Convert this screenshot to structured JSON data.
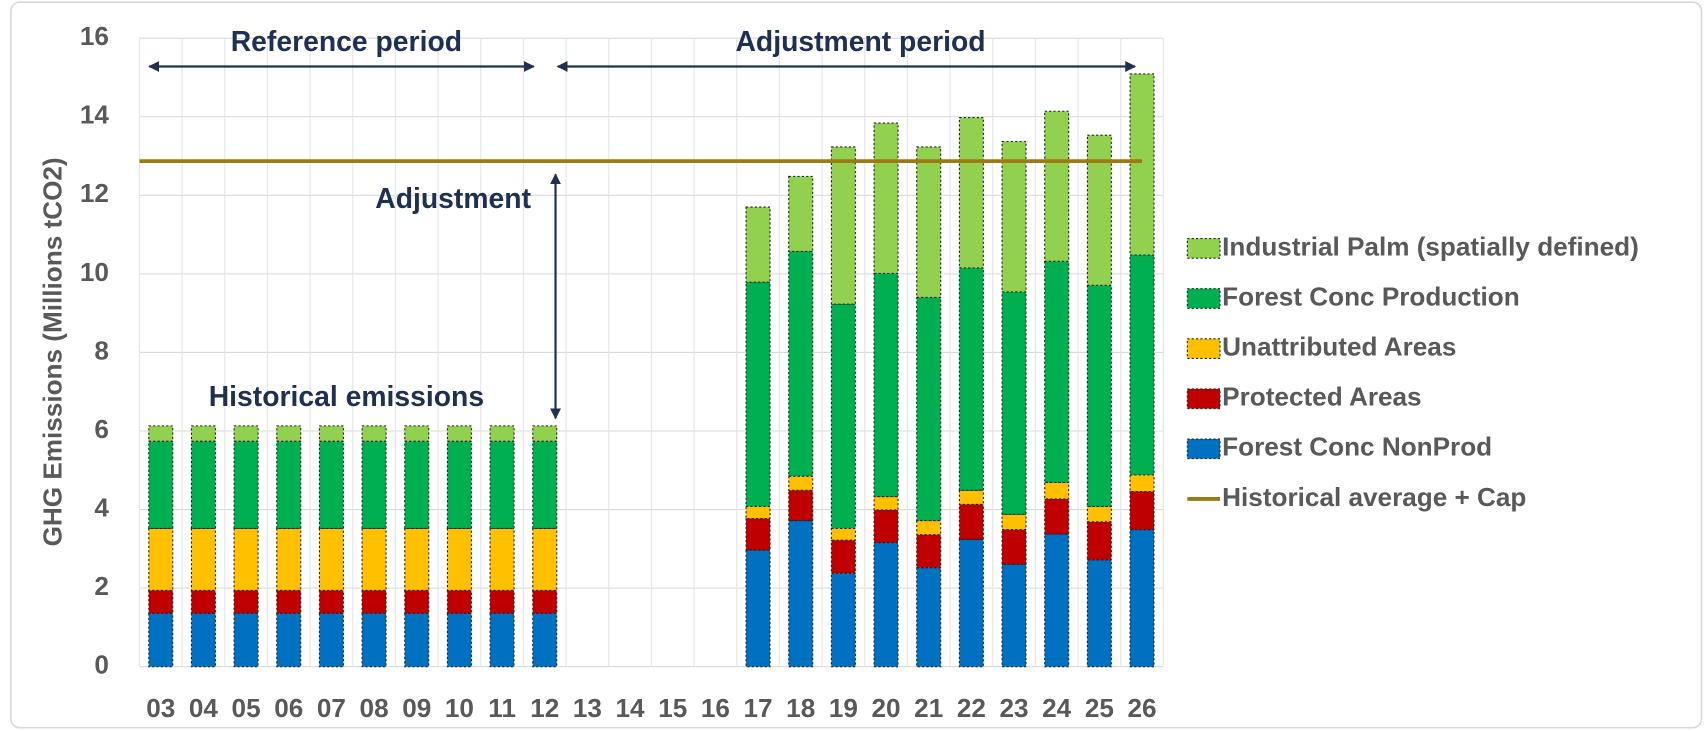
{
  "chart_data": {
    "type": "stacked_bar",
    "y_label": "GHG Emissions (Millions tCO2)",
    "categories": [
      "03",
      "04",
      "05",
      "06",
      "07",
      "08",
      "09",
      "10",
      "11",
      "12",
      "13",
      "14",
      "15",
      "16",
      "17",
      "18",
      "19",
      "20",
      "21",
      "22",
      "23",
      "24",
      "25",
      "26"
    ],
    "series": [
      {
        "name": "Forest Conc NonProd",
        "color": "#0070c0",
        "values": [
          1.36,
          1.36,
          1.36,
          1.36,
          1.36,
          1.36,
          1.36,
          1.36,
          1.36,
          1.36,
          null,
          null,
          null,
          null,
          2.97,
          3.72,
          2.38,
          3.16,
          2.52,
          3.24,
          2.61,
          3.38,
          2.72,
          3.49
        ]
      },
      {
        "name": "Protected Areas",
        "color": "#c00000",
        "values": [
          0.58,
          0.58,
          0.58,
          0.58,
          0.58,
          0.58,
          0.58,
          0.58,
          0.58,
          0.58,
          null,
          null,
          null,
          null,
          0.8,
          0.77,
          0.84,
          0.83,
          0.84,
          0.89,
          0.88,
          0.89,
          0.97,
          0.97
        ]
      },
      {
        "name": "Unattributed Areas",
        "color": "#ffc000",
        "values": [
          1.58,
          1.58,
          1.58,
          1.58,
          1.58,
          1.58,
          1.58,
          1.58,
          1.58,
          1.58,
          null,
          null,
          null,
          null,
          0.31,
          0.36,
          0.3,
          0.34,
          0.36,
          0.36,
          0.39,
          0.42,
          0.39,
          0.42
        ]
      },
      {
        "name": "Forest Conc Production",
        "color": "#00b050",
        "values": [
          2.22,
          2.22,
          2.22,
          2.22,
          2.22,
          2.22,
          2.22,
          2.22,
          2.22,
          2.22,
          null,
          null,
          null,
          null,
          5.71,
          5.72,
          5.71,
          5.68,
          5.68,
          5.66,
          5.66,
          5.63,
          5.63,
          5.6
        ]
      },
      {
        "name": "Industrial Palm (spatially defined)",
        "color": "#92d050",
        "values": [
          0.39,
          0.39,
          0.39,
          0.39,
          0.39,
          0.39,
          0.39,
          0.39,
          0.39,
          0.39,
          null,
          null,
          null,
          null,
          1.91,
          1.91,
          4.0,
          3.83,
          3.83,
          3.83,
          3.83,
          3.82,
          3.82,
          4.61
        ]
      }
    ],
    "reference_line": {
      "name": "Historical average + Cap",
      "value": 12.87,
      "color": "#9c7a14"
    },
    "annotations": [
      "Reference period",
      "Adjustment period",
      "Adjustment",
      "Historical emissions"
    ],
    "ylim": [
      0,
      16
    ],
    "yticks": [
      0,
      2,
      4,
      6,
      8,
      10,
      12,
      14,
      16
    ],
    "grid": true
  }
}
